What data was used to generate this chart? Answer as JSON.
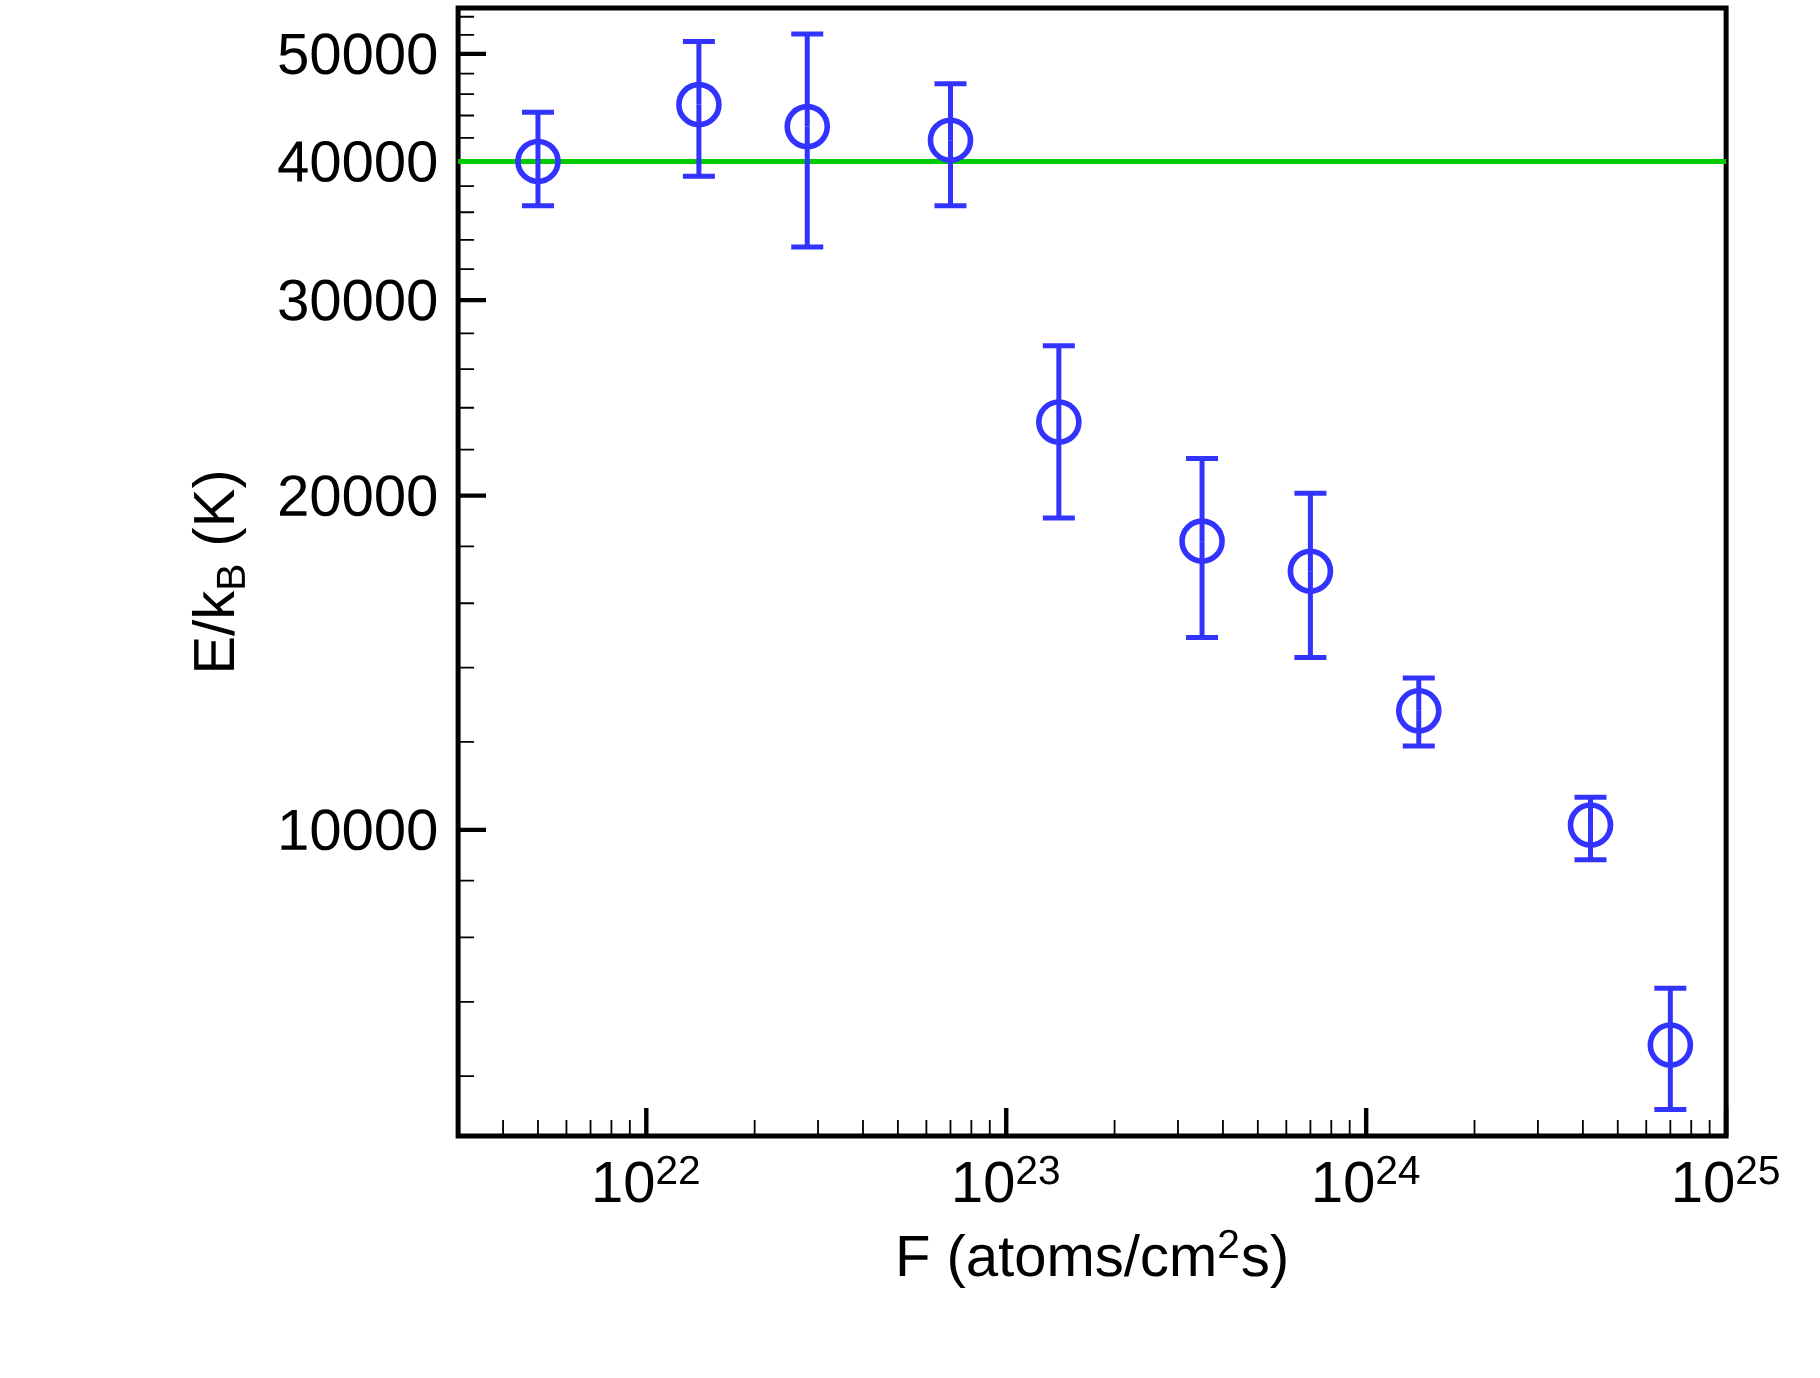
{
  "chart_data": {
    "type": "scatter",
    "xlabel": "F (atoms/cm$^{2}$s)",
    "ylabel": "E/k$_{B}$ (K)",
    "log": "xy",
    "marker": "circle",
    "x": [
      5e+21,
      1.4e+22,
      2.8e+22,
      7e+22,
      1.4e+23,
      3.5e+23,
      7e+23,
      1.4e+24,
      4.2e+24,
      7e+24
    ],
    "series": [
      {
        "color": "#3333ff",
        "values": [
          40000,
          45000,
          43000,
          41800,
          23300,
          18200,
          17100,
          12800,
          10100,
          6400
        ],
        "errors": [
          [
            36500,
            44300
          ],
          [
            38800,
            51300
          ],
          [
            33500,
            52100
          ],
          [
            36500,
            47000
          ],
          [
            19100,
            27300
          ],
          [
            14900,
            21600
          ],
          [
            14300,
            20100
          ],
          [
            11900,
            13700
          ],
          [
            9400,
            10700
          ],
          [
            5600,
            7200
          ]
        ]
      }
    ],
    "ref_lines": [
      {
        "axis": "y",
        "value": 40000,
        "color": "#00cc00"
      }
    ],
    "xlim": [
      3e+21,
      1e+25
    ],
    "ylim": [
      5300,
      55000
    ],
    "xticks": [
      {
        "value": 1e+22,
        "label": "10$^{22}$"
      },
      {
        "value": 1e+23,
        "label": "10$^{23}$"
      },
      {
        "value": 1e+24,
        "label": "10$^{24}$"
      },
      {
        "value": 1e+25,
        "label": "10$^{25}$"
      },
      {
        "value": 4e+21,
        "label": null
      },
      {
        "value": 5e+21,
        "label": null
      },
      {
        "value": 6e+21,
        "label": null
      },
      {
        "value": 7e+21,
        "label": null
      },
      {
        "value": 8e+21,
        "label": null
      },
      {
        "value": 9e+21,
        "label": null
      },
      {
        "value": 2e+22,
        "label": null
      },
      {
        "value": 3e+22,
        "label": null
      },
      {
        "value": 4e+22,
        "label": null
      },
      {
        "value": 5e+22,
        "label": null
      },
      {
        "value": 6e+22,
        "label": null
      },
      {
        "value": 7e+22,
        "label": null
      },
      {
        "value": 8e+22,
        "label": null
      },
      {
        "value": 9e+22,
        "label": null
      },
      {
        "value": 2e+23,
        "label": null
      },
      {
        "value": 3e+23,
        "label": null
      },
      {
        "value": 4e+23,
        "label": null
      },
      {
        "value": 5e+23,
        "label": null
      },
      {
        "value": 6e+23,
        "label": null
      },
      {
        "value": 7e+23,
        "label": null
      },
      {
        "value": 8e+23,
        "label": null
      },
      {
        "value": 9e+23,
        "label": null
      },
      {
        "value": 2e+24,
        "label": null
      },
      {
        "value": 3e+24,
        "label": null
      },
      {
        "value": 4e+24,
        "label": null
      },
      {
        "value": 5e+24,
        "label": null
      },
      {
        "value": 6e+24,
        "label": null
      },
      {
        "value": 7e+24,
        "label": null
      },
      {
        "value": 8e+24,
        "label": null
      },
      {
        "value": 9e+24,
        "label": null
      }
    ],
    "yticks": [
      10000,
      20000,
      30000,
      40000,
      50000,
      {
        "value": 6000,
        "label": null
      },
      {
        "value": 7000,
        "label": null
      },
      {
        "value": 8000,
        "label": null
      },
      {
        "value": 9000,
        "label": null
      },
      {
        "value": 12000,
        "label": null
      },
      {
        "value": 14000,
        "label": null
      },
      {
        "value": 16000,
        "label": null
      },
      {
        "value": 18000,
        "label": null
      },
      {
        "value": 22000,
        "label": null
      },
      {
        "value": 24000,
        "label": null
      },
      {
        "value": 26000,
        "label": null
      },
      {
        "value": 28000,
        "label": null
      },
      {
        "value": 32000,
        "label": null
      },
      {
        "value": 34000,
        "label": null
      },
      {
        "value": 36000,
        "label": null
      },
      {
        "value": 38000,
        "label": null
      },
      {
        "value": 42000,
        "label": null
      },
      {
        "value": 44000,
        "label": null
      },
      {
        "value": 46000,
        "label": null
      },
      {
        "value": 48000,
        "label": null
      },
      {
        "value": 52000,
        "label": null
      },
      {
        "value": 54000,
        "label": null
      }
    ]
  }
}
